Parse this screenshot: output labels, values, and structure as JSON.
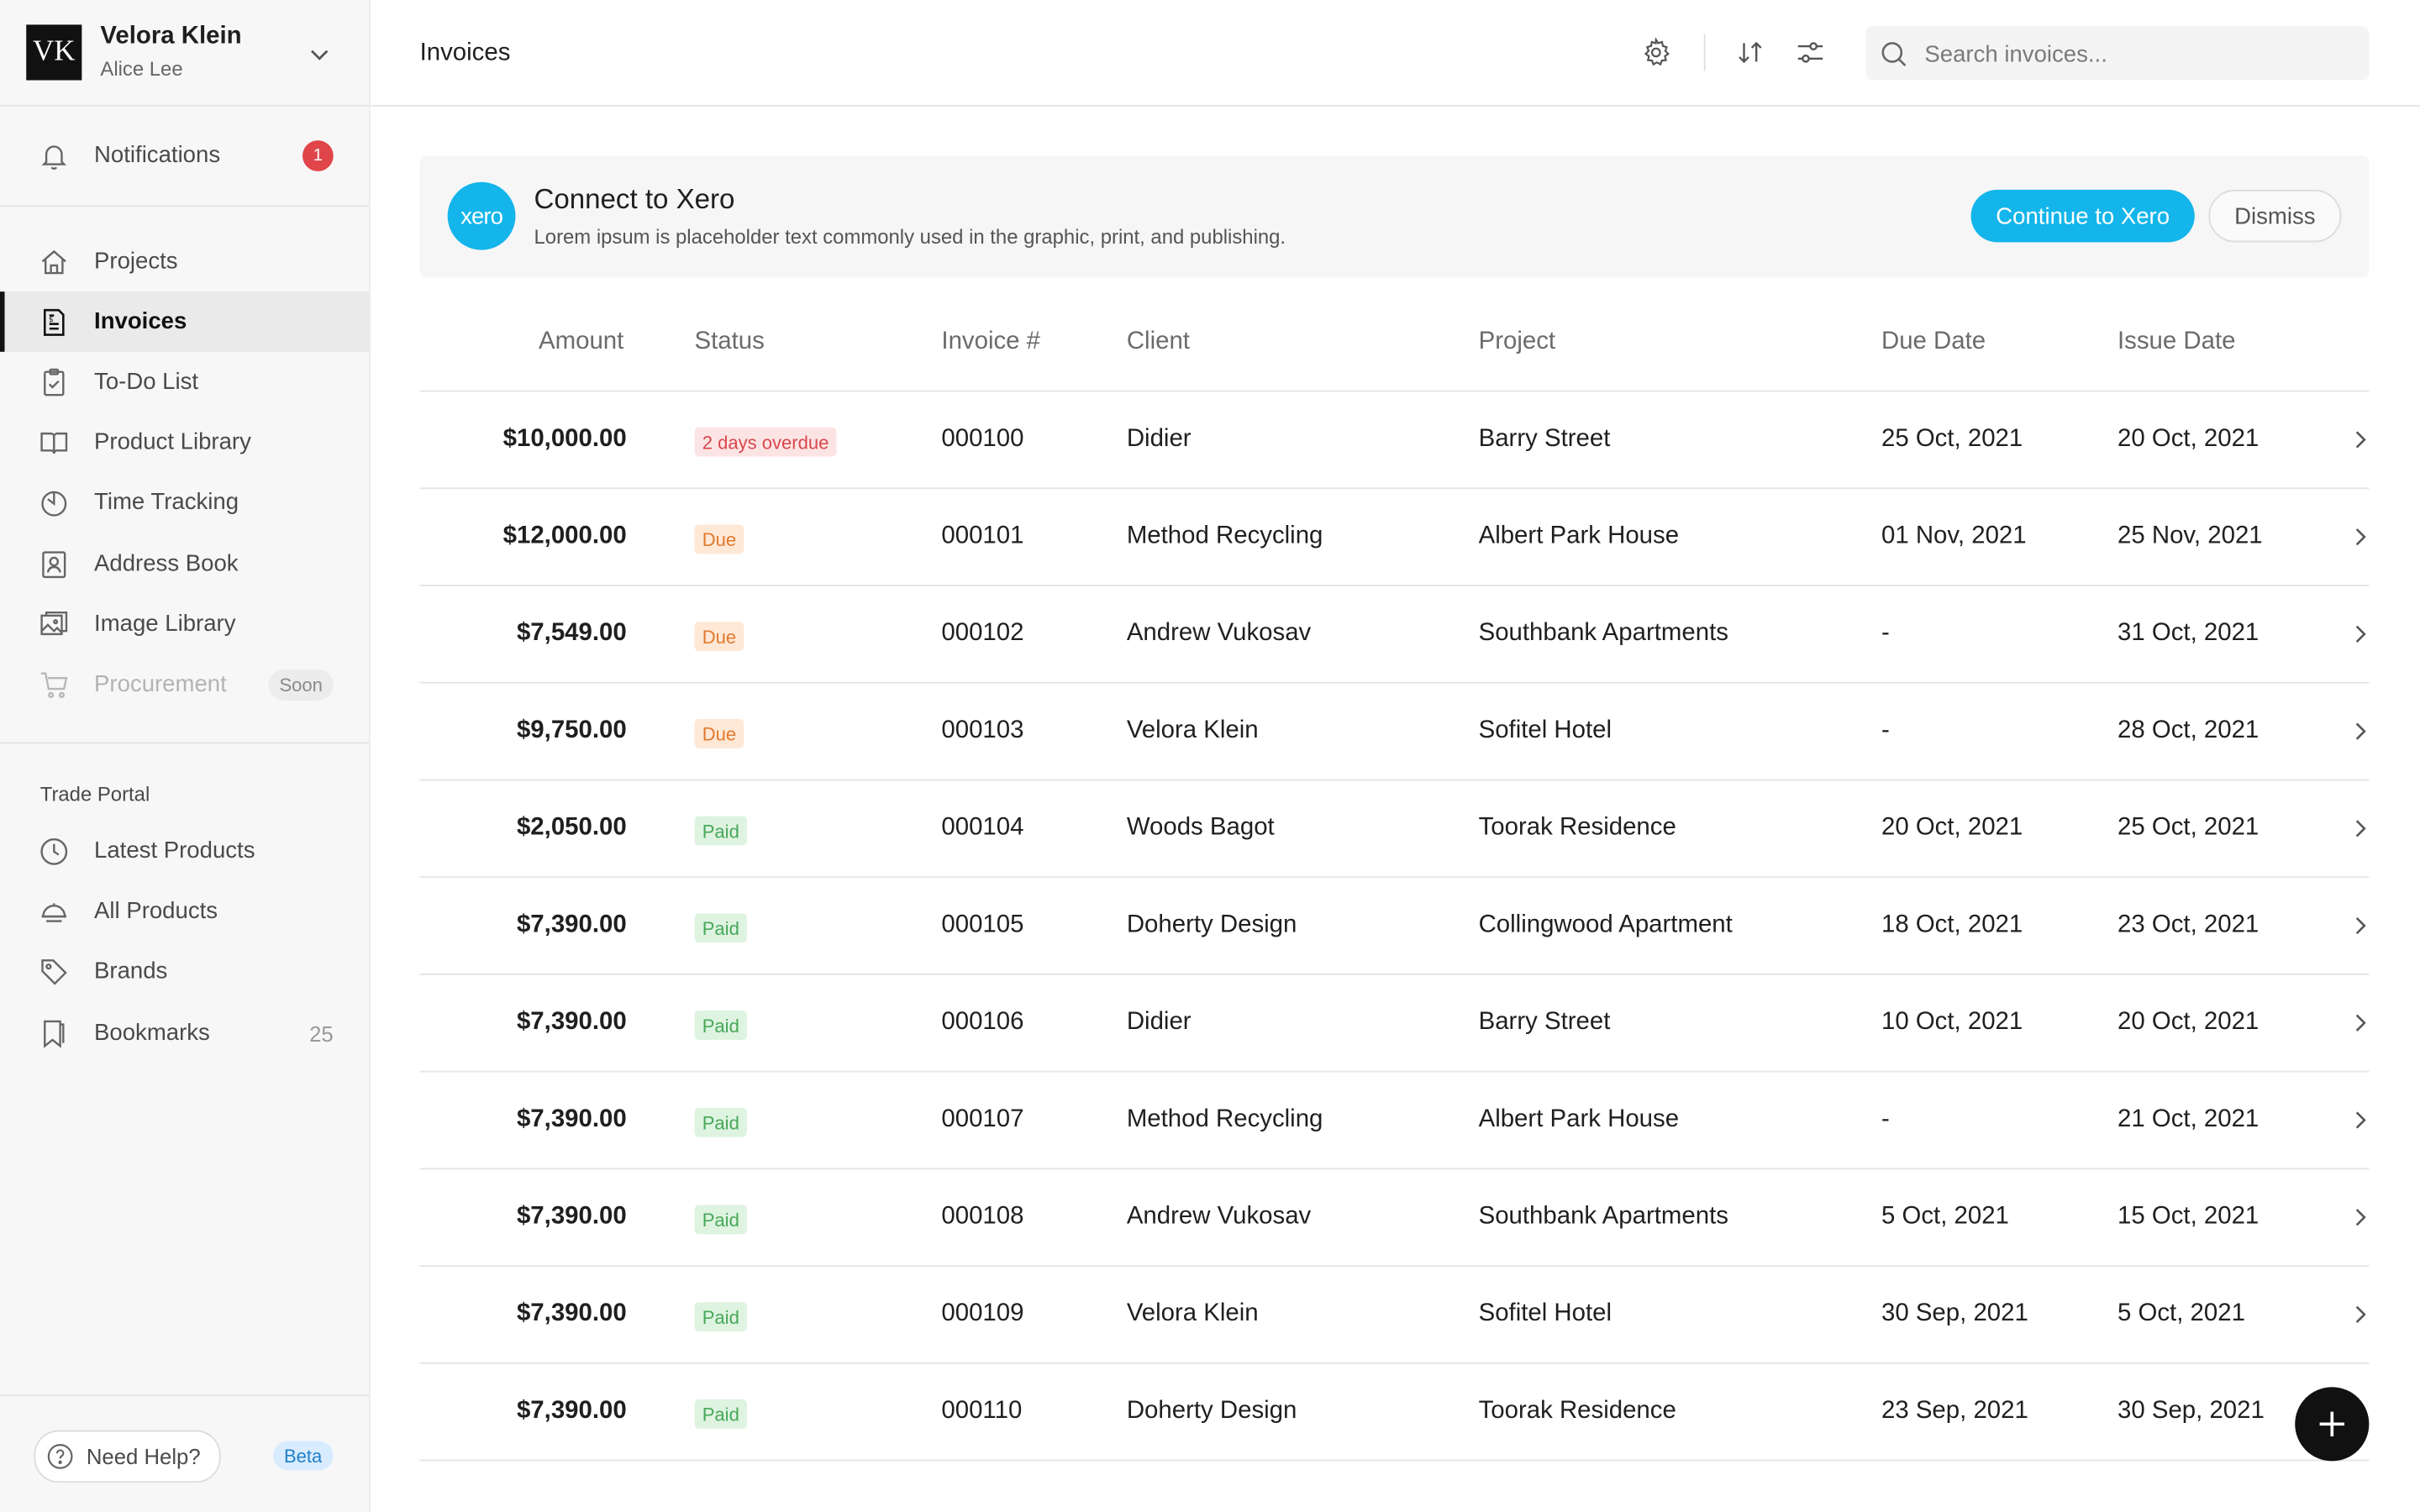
{
  "sidebar": {
    "avatar_initials": "VK",
    "user_name": "Velora Klein",
    "user_sub": "Alice Lee",
    "notifications": {
      "label": "Notifications",
      "count": "1"
    },
    "nav": [
      {
        "label": "Projects",
        "icon": "home-icon"
      },
      {
        "label": "Invoices",
        "icon": "invoice-icon",
        "active": true
      },
      {
        "label": "To-Do List",
        "icon": "clipboard-check-icon"
      },
      {
        "label": "Product Library",
        "icon": "book-icon"
      },
      {
        "label": "Time Tracking",
        "icon": "timer-icon"
      },
      {
        "label": "Address Book",
        "icon": "contact-book-icon"
      },
      {
        "label": "Image Library",
        "icon": "images-icon"
      },
      {
        "label": "Procurement",
        "icon": "cart-icon",
        "badge": "Soon",
        "disabled": true
      }
    ],
    "trade_portal": {
      "title": "Trade Portal",
      "items": [
        {
          "label": "Latest Products",
          "icon": "clock-icon"
        },
        {
          "label": "All Products",
          "icon": "cloche-icon"
        },
        {
          "label": "Brands",
          "icon": "tag-icon"
        },
        {
          "label": "Bookmarks",
          "icon": "bookmark-icon",
          "count": "25"
        }
      ]
    },
    "help_label": "Need Help?",
    "beta_label": "Beta"
  },
  "header": {
    "title": "Invoices",
    "search_placeholder": "Search invoices..."
  },
  "banner": {
    "logo_text": "xero",
    "title": "Connect to Xero",
    "description": "Lorem ipsum is placeholder text commonly used in the graphic, print, and publishing.",
    "primary_label": "Continue to Xero",
    "secondary_label": "Dismiss"
  },
  "table": {
    "columns": [
      "Amount",
      "Status",
      "Invoice #",
      "Client",
      "Project",
      "Due Date",
      "Issue Date"
    ],
    "rows": [
      {
        "amount": "$10,000.00",
        "status": "2 days overdue",
        "status_type": "overdue",
        "invoice": "000100",
        "client": "Didier",
        "project": "Barry Street",
        "due": "25 Oct, 2021",
        "issue": "20 Oct, 2021"
      },
      {
        "amount": "$12,000.00",
        "status": "Due",
        "status_type": "due",
        "invoice": "000101",
        "client": "Method Recycling",
        "project": "Albert Park House",
        "due": "01 Nov, 2021",
        "issue": "25 Nov, 2021"
      },
      {
        "amount": "$7,549.00",
        "status": "Due",
        "status_type": "due",
        "invoice": "000102",
        "client": "Andrew Vukosav",
        "project": "Southbank Apartments",
        "due": "-",
        "issue": "31 Oct, 2021"
      },
      {
        "amount": "$9,750.00",
        "status": "Due",
        "status_type": "due",
        "invoice": "000103",
        "client": "Velora Klein",
        "project": "Sofitel Hotel",
        "due": "-",
        "issue": "28 Oct, 2021"
      },
      {
        "amount": "$2,050.00",
        "status": "Paid",
        "status_type": "paid",
        "invoice": "000104",
        "client": "Woods Bagot",
        "project": "Toorak Residence",
        "due": "20 Oct, 2021",
        "issue": "25 Oct, 2021"
      },
      {
        "amount": "$7,390.00",
        "status": "Paid",
        "status_type": "paid",
        "invoice": "000105",
        "client": "Doherty Design",
        "project": "Collingwood Apartment",
        "due": "18 Oct, 2021",
        "issue": "23 Oct, 2021"
      },
      {
        "amount": "$7,390.00",
        "status": "Paid",
        "status_type": "paid",
        "invoice": "000106",
        "client": "Didier",
        "project": "Barry Street",
        "due": "10 Oct, 2021",
        "issue": "20 Oct, 2021"
      },
      {
        "amount": "$7,390.00",
        "status": "Paid",
        "status_type": "paid",
        "invoice": "000107",
        "client": "Method Recycling",
        "project": "Albert Park House",
        "due": "-",
        "issue": "21 Oct, 2021"
      },
      {
        "amount": "$7,390.00",
        "status": "Paid",
        "status_type": "paid",
        "invoice": "000108",
        "client": "Andrew Vukosav",
        "project": "Southbank Apartments",
        "due": "5 Oct, 2021",
        "issue": "15 Oct, 2021"
      },
      {
        "amount": "$7,390.00",
        "status": "Paid",
        "status_type": "paid",
        "invoice": "000109",
        "client": "Velora Klein",
        "project": "Sofitel Hotel",
        "due": "30 Sep, 2021",
        "issue": "5 Oct, 2021"
      },
      {
        "amount": "$7,390.00",
        "status": "Paid",
        "status_type": "paid",
        "invoice": "000110",
        "client": "Doherty Design",
        "project": "Toorak Residence",
        "due": "23 Sep, 2021",
        "issue": "30 Sep, 2021"
      }
    ]
  },
  "colors": {
    "accent": "#13b5ea",
    "overdue": "#d6474d",
    "due": "#e07a2e",
    "paid": "#47a85a",
    "notification_badge": "#e0454a"
  }
}
